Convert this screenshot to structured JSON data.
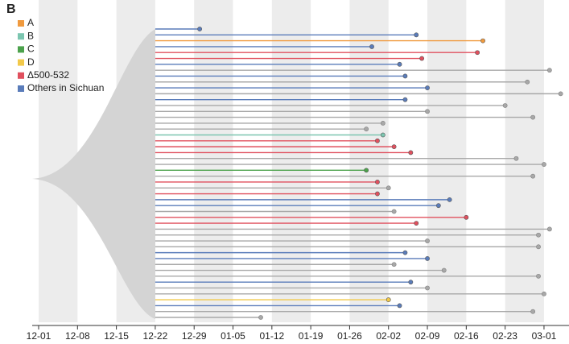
{
  "chart_data": {
    "type": "tree",
    "panel_label": "B",
    "xlim": [
      0,
      95.5
    ],
    "xticks": [
      {
        "value": 0,
        "label": "12-01"
      },
      {
        "value": 7,
        "label": "12-08"
      },
      {
        "value": 14,
        "label": "12-15"
      },
      {
        "value": 21,
        "label": "12-22"
      },
      {
        "value": 28,
        "label": "12-29"
      },
      {
        "value": 35,
        "label": "01-05"
      },
      {
        "value": 42,
        "label": "01-12"
      },
      {
        "value": 49,
        "label": "01-19"
      },
      {
        "value": 56,
        "label": "01-26"
      },
      {
        "value": 63,
        "label": "02-02"
      },
      {
        "value": 70,
        "label": "02-09"
      },
      {
        "value": 77,
        "label": "02-16"
      },
      {
        "value": 84,
        "label": "02-23"
      },
      {
        "value": 91,
        "label": "03-01"
      }
    ],
    "tree_color": "#a8a8a8",
    "series": [
      {
        "name": "A",
        "color": "#f09a3e"
      },
      {
        "name": "B",
        "color": "#7cc6b0"
      },
      {
        "name": "C",
        "color": "#4ca24c"
      },
      {
        "name": "D",
        "color": "#f2c94a"
      },
      {
        "name": "Δ500-532",
        "color": "#e0505e"
      },
      {
        "name": "Others in Sichuan",
        "color": "#5a7cba"
      }
    ],
    "tips": [
      [
        21,
        29,
        5
      ],
      [
        21,
        68,
        5
      ],
      [
        21,
        80,
        0
      ],
      [
        21,
        60,
        5
      ],
      [
        21,
        79,
        4
      ],
      [
        21,
        69,
        4
      ],
      [
        21,
        65,
        5
      ],
      [
        21,
        92,
        null
      ],
      [
        21,
        66,
        5
      ],
      [
        21,
        88,
        null
      ],
      [
        21,
        70,
        5
      ],
      [
        21,
        94,
        null
      ],
      [
        21,
        66,
        5
      ],
      [
        21,
        84,
        null
      ],
      [
        21,
        70,
        null
      ],
      [
        21,
        89,
        null
      ],
      [
        21,
        62,
        null
      ],
      [
        21,
        59,
        null
      ],
      [
        21,
        62,
        1
      ],
      [
        21,
        61,
        4
      ],
      [
        21,
        64,
        4
      ],
      [
        21,
        67,
        4
      ],
      [
        21,
        86,
        null
      ],
      [
        21,
        91,
        null
      ],
      [
        21,
        59,
        2
      ],
      [
        21,
        89,
        null
      ],
      [
        21,
        61,
        4
      ],
      [
        21,
        63,
        null
      ],
      [
        21,
        61,
        4
      ],
      [
        21,
        74,
        5
      ],
      [
        21,
        72,
        5
      ],
      [
        21,
        64,
        null
      ],
      [
        21,
        77,
        4
      ],
      [
        21,
        68,
        4
      ],
      [
        21,
        92,
        null
      ],
      [
        21,
        90,
        null
      ],
      [
        21,
        70,
        null
      ],
      [
        21,
        90,
        null
      ],
      [
        21,
        66,
        5
      ],
      [
        21,
        70,
        5
      ],
      [
        21,
        64,
        null
      ],
      [
        21,
        73,
        null
      ],
      [
        21,
        90,
        null
      ],
      [
        21,
        67,
        5
      ],
      [
        21,
        70,
        null
      ],
      [
        21,
        91,
        null
      ],
      [
        21,
        63,
        3
      ],
      [
        21,
        65,
        5
      ],
      [
        21,
        89,
        null
      ],
      [
        21,
        40,
        null
      ]
    ]
  }
}
